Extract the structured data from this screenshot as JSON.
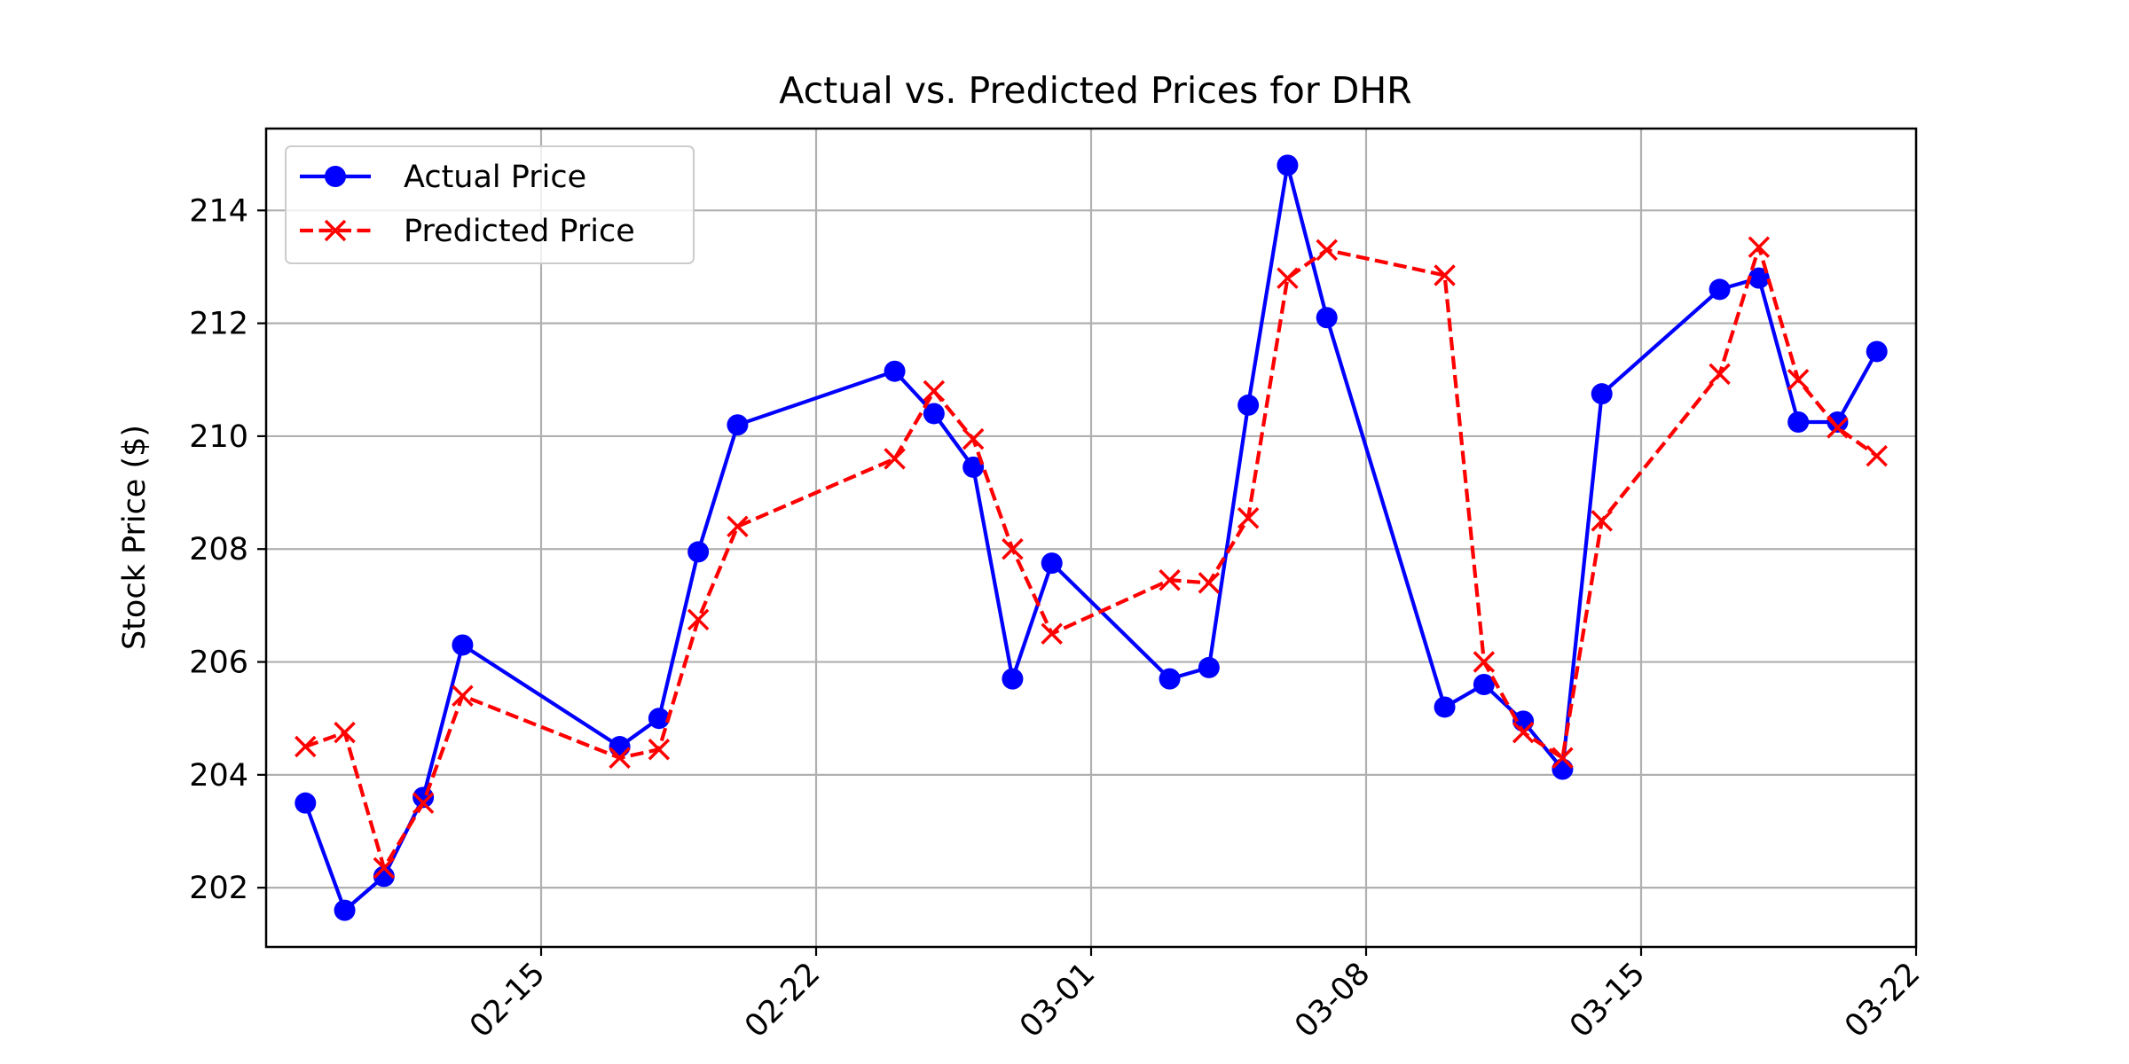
{
  "chart_data": {
    "type": "line",
    "title": "Actual vs. Predicted Prices for DHR",
    "xlabel": "",
    "ylabel": "Stock Price ($)",
    "ylim": [
      200.95,
      215.45
    ],
    "xlim": [
      "02-08",
      "03-22"
    ],
    "x_ticks": [
      "02-15",
      "02-22",
      "03-01",
      "03-08",
      "03-15",
      "03-22"
    ],
    "y_ticks": [
      202,
      204,
      206,
      208,
      210,
      212,
      214
    ],
    "grid": true,
    "legend": "upper left",
    "x": [
      "02-09",
      "02-10",
      "02-11",
      "02-12",
      "02-13",
      "02-17",
      "02-18",
      "02-19",
      "02-20",
      "02-24",
      "02-25",
      "02-26",
      "02-27",
      "02-28",
      "03-03",
      "03-04",
      "03-05",
      "03-06",
      "03-07",
      "03-10",
      "03-11",
      "03-12",
      "03-13",
      "03-14",
      "03-17",
      "03-18",
      "03-19",
      "03-20",
      "03-21"
    ],
    "series": [
      {
        "name": "Actual Price",
        "color": "#0000ff",
        "marker": "circle",
        "linestyle": "solid",
        "values": [
          203.5,
          201.6,
          202.2,
          203.6,
          206.3,
          204.5,
          205.0,
          207.95,
          210.2,
          211.15,
          210.4,
          209.45,
          205.7,
          207.75,
          205.7,
          205.9,
          210.55,
          214.8,
          212.1,
          205.2,
          205.6,
          204.95,
          204.1,
          210.75,
          212.6,
          212.8,
          210.25,
          210.25,
          211.5
        ]
      },
      {
        "name": "Predicted Price",
        "color": "#ff0000",
        "marker": "x",
        "linestyle": "dashed",
        "values": [
          204.5,
          204.75,
          202.35,
          203.5,
          205.4,
          204.3,
          204.45,
          206.75,
          208.4,
          209.6,
          210.8,
          209.95,
          208.0,
          206.5,
          207.45,
          207.4,
          208.55,
          212.8,
          213.3,
          212.85,
          206.0,
          204.75,
          204.3,
          208.5,
          211.1,
          213.35,
          211.0,
          210.15,
          209.65
        ]
      }
    ]
  }
}
